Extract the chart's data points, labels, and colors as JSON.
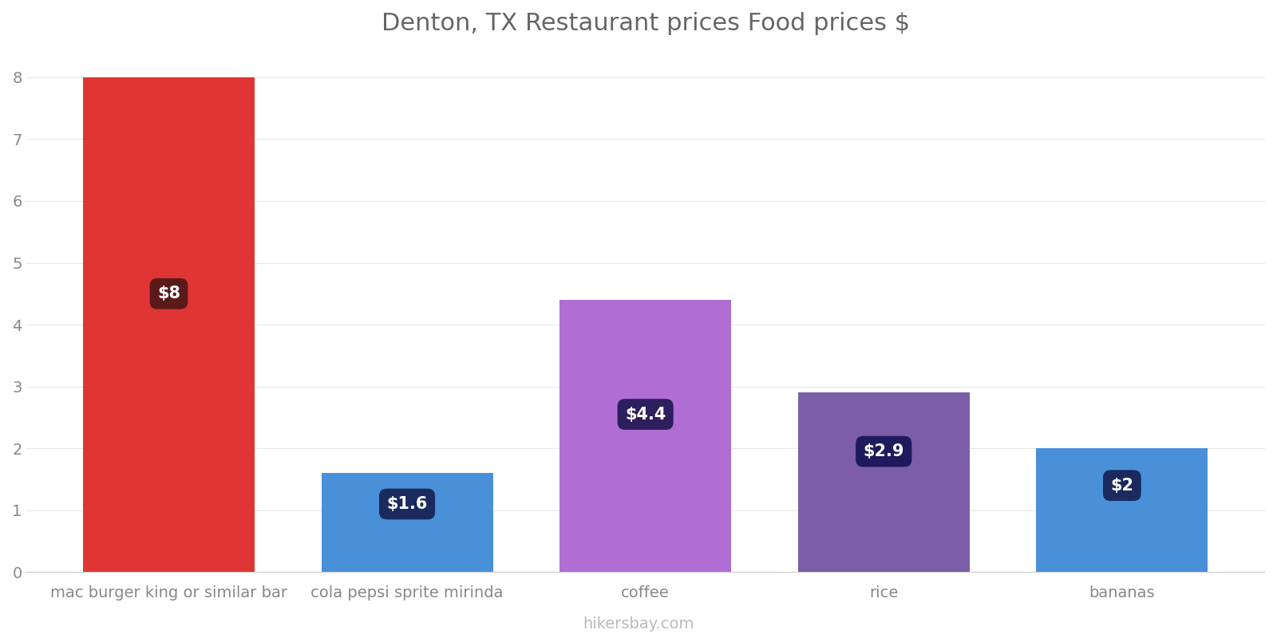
{
  "title": "Denton, TX Restaurant prices Food prices $",
  "categories": [
    "mac burger king or similar bar",
    "cola pepsi sprite mirinda",
    "coffee",
    "rice",
    "bananas"
  ],
  "values": [
    8.0,
    1.6,
    4.4,
    2.9,
    2.0
  ],
  "bar_colors": [
    "#e03535",
    "#4a90d9",
    "#b06ed4",
    "#7b5ea7",
    "#4a90d9"
  ],
  "label_texts": [
    "$8",
    "$1.6",
    "$4.4",
    "$2.9",
    "$2"
  ],
  "label_bg_colors": [
    "#5a1a1a",
    "#1a2a5e",
    "#2d1f5e",
    "#1f1a5e",
    "#1a2a5e"
  ],
  "label_text_color": "#ffffff",
  "ylim": [
    0,
    8.4
  ],
  "yticks": [
    0,
    1,
    2,
    3,
    4,
    5,
    6,
    7,
    8
  ],
  "footer": "hikersbay.com",
  "background_color": "#ffffff",
  "title_fontsize": 22,
  "tick_label_fontsize": 14,
  "footer_fontsize": 14,
  "grid_color": "#e8e8e8",
  "bar_width": 0.72
}
